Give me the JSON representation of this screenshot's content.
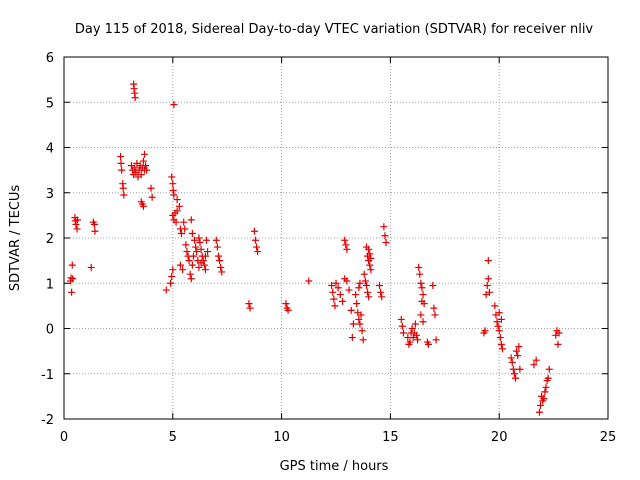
{
  "chart_data": {
    "type": "scatter",
    "title": "Day 115 of 2018, Sidereal Day-to-day VTEC variation (SDTVAR) for receiver nliv",
    "xlabel": "GPS time / hours",
    "ylabel": "SDTVAR / TECUs",
    "xlim": [
      0,
      25
    ],
    "ylim": [
      -2,
      6
    ],
    "xticks": [
      0,
      5,
      10,
      15,
      20,
      25
    ],
    "yticks": [
      -2,
      -1,
      0,
      1,
      2,
      3,
      4,
      5,
      6
    ],
    "xtick_labels": [
      "0",
      "5",
      "10",
      "15",
      "20",
      "25"
    ],
    "ytick_labels": [
      "-2",
      "-1",
      "0",
      "1",
      "2",
      "3",
      "4",
      "5",
      "6"
    ],
    "grid": true,
    "marker": "+",
    "color": "#e00000",
    "series": [
      {
        "name": "SDTVAR",
        "points": [
          [
            0.3,
            1.05
          ],
          [
            0.32,
            1.12
          ],
          [
            0.35,
            0.8
          ],
          [
            0.38,
            1.4
          ],
          [
            0.4,
            1.1
          ],
          [
            0.5,
            2.45
          ],
          [
            0.52,
            2.38
          ],
          [
            0.55,
            2.3
          ],
          [
            0.6,
            2.2
          ],
          [
            0.62,
            2.4
          ],
          [
            1.25,
            1.35
          ],
          [
            1.35,
            2.35
          ],
          [
            1.4,
            2.3
          ],
          [
            1.42,
            2.15
          ],
          [
            2.6,
            3.8
          ],
          [
            2.62,
            3.65
          ],
          [
            2.65,
            3.5
          ],
          [
            2.7,
            3.2
          ],
          [
            2.72,
            3.1
          ],
          [
            2.75,
            2.95
          ],
          [
            3.2,
            5.4
          ],
          [
            3.22,
            5.3
          ],
          [
            3.25,
            5.2
          ],
          [
            3.27,
            5.1
          ],
          [
            3.1,
            3.6
          ],
          [
            3.15,
            3.5
          ],
          [
            3.2,
            3.4
          ],
          [
            3.25,
            3.55
          ],
          [
            3.3,
            3.45
          ],
          [
            3.35,
            3.65
          ],
          [
            3.4,
            3.35
          ],
          [
            3.45,
            3.5
          ],
          [
            3.5,
            3.6
          ],
          [
            3.55,
            3.4
          ],
          [
            3.6,
            3.55
          ],
          [
            3.65,
            3.7
          ],
          [
            3.7,
            3.5
          ],
          [
            3.55,
            2.8
          ],
          [
            3.6,
            2.75
          ],
          [
            3.65,
            2.7
          ],
          [
            3.7,
            3.85
          ],
          [
            3.75,
            3.6
          ],
          [
            3.8,
            3.5
          ],
          [
            4.0,
            3.1
          ],
          [
            4.05,
            2.9
          ],
          [
            4.7,
            0.85
          ],
          [
            4.9,
            1.0
          ],
          [
            4.95,
            1.15
          ],
          [
            5.0,
            1.3
          ],
          [
            4.95,
            3.35
          ],
          [
            5.0,
            3.2
          ],
          [
            5.02,
            3.05
          ],
          [
            5.05,
            2.95
          ],
          [
            5.0,
            2.5
          ],
          [
            5.05,
            2.4
          ],
          [
            5.1,
            2.55
          ],
          [
            5.15,
            2.35
          ],
          [
            5.2,
            2.6
          ],
          [
            5.05,
            4.95
          ],
          [
            5.2,
            2.85
          ],
          [
            5.3,
            2.7
          ],
          [
            5.35,
            2.2
          ],
          [
            5.4,
            2.1
          ],
          [
            5.35,
            1.4
          ],
          [
            5.45,
            1.3
          ],
          [
            5.5,
            2.35
          ],
          [
            5.55,
            2.2
          ],
          [
            5.6,
            1.85
          ],
          [
            5.65,
            1.7
          ],
          [
            5.7,
            1.6
          ],
          [
            5.75,
            1.5
          ],
          [
            5.8,
            1.2
          ],
          [
            5.85,
            1.1
          ],
          [
            5.9,
            1.4
          ],
          [
            5.95,
            1.6
          ],
          [
            5.85,
            2.4
          ],
          [
            5.9,
            2.1
          ],
          [
            6.0,
            1.95
          ],
          [
            6.05,
            1.8
          ],
          [
            6.1,
            1.7
          ],
          [
            6.15,
            1.5
          ],
          [
            6.2,
            1.35
          ],
          [
            6.25,
            1.9
          ],
          [
            6.3,
            1.75
          ],
          [
            6.35,
            1.6
          ],
          [
            6.4,
            1.5
          ],
          [
            6.45,
            1.4
          ],
          [
            6.5,
            1.3
          ],
          [
            6.55,
            1.95
          ],
          [
            6.6,
            1.7
          ],
          [
            6.2,
            2.0
          ],
          [
            6.3,
            1.45
          ],
          [
            6.5,
            1.6
          ],
          [
            7.0,
            1.95
          ],
          [
            7.05,
            1.8
          ],
          [
            7.1,
            1.6
          ],
          [
            7.15,
            1.5
          ],
          [
            7.2,
            1.35
          ],
          [
            7.25,
            1.25
          ],
          [
            8.5,
            0.55
          ],
          [
            8.55,
            0.45
          ],
          [
            8.75,
            2.15
          ],
          [
            8.8,
            1.95
          ],
          [
            8.85,
            1.8
          ],
          [
            8.9,
            1.7
          ],
          [
            10.2,
            0.55
          ],
          [
            10.25,
            0.45
          ],
          [
            10.3,
            0.4
          ],
          [
            11.25,
            1.05
          ],
          [
            12.3,
            0.95
          ],
          [
            12.35,
            0.8
          ],
          [
            12.4,
            0.65
          ],
          [
            12.45,
            0.5
          ],
          [
            12.5,
            1.0
          ],
          [
            12.6,
            0.9
          ],
          [
            12.7,
            0.75
          ],
          [
            12.8,
            0.6
          ],
          [
            12.9,
            1.1
          ],
          [
            13.0,
            1.05
          ],
          [
            12.9,
            1.95
          ],
          [
            12.95,
            1.85
          ],
          [
            13.0,
            1.75
          ],
          [
            13.1,
            0.85
          ],
          [
            13.2,
            0.4
          ],
          [
            13.25,
            -0.2
          ],
          [
            13.3,
            0.1
          ],
          [
            13.4,
            0.75
          ],
          [
            13.45,
            0.55
          ],
          [
            13.5,
            0.35
          ],
          [
            13.55,
            0.2
          ],
          [
            13.6,
            0.1
          ],
          [
            13.65,
            0.3
          ],
          [
            13.7,
            -0.05
          ],
          [
            13.75,
            -0.25
          ],
          [
            13.6,
            1.0
          ],
          [
            13.55,
            0.9
          ],
          [
            13.8,
            1.2
          ],
          [
            13.85,
            1.05
          ],
          [
            13.9,
            0.95
          ],
          [
            13.95,
            0.8
          ],
          [
            14.0,
            0.7
          ],
          [
            13.95,
            1.6
          ],
          [
            14.0,
            1.5
          ],
          [
            14.05,
            1.4
          ],
          [
            14.1,
            1.3
          ],
          [
            13.9,
            1.8
          ],
          [
            14.0,
            1.75
          ],
          [
            14.05,
            1.65
          ],
          [
            14.1,
            1.55
          ],
          [
            14.5,
            0.95
          ],
          [
            14.55,
            0.8
          ],
          [
            14.6,
            0.7
          ],
          [
            14.7,
            2.25
          ],
          [
            14.75,
            2.05
          ],
          [
            14.8,
            1.9
          ],
          [
            15.5,
            0.2
          ],
          [
            15.55,
            0.05
          ],
          [
            15.6,
            -0.1
          ],
          [
            15.8,
            -0.2
          ],
          [
            15.85,
            -0.35
          ],
          [
            15.9,
            -0.3
          ],
          [
            15.95,
            -0.1
          ],
          [
            16.0,
            0.0
          ],
          [
            16.05,
            -0.2
          ],
          [
            16.1,
            -0.1
          ],
          [
            16.15,
            0.1
          ],
          [
            16.2,
            -0.15
          ],
          [
            16.25,
            -0.25
          ],
          [
            16.3,
            1.35
          ],
          [
            16.35,
            1.2
          ],
          [
            16.4,
            1.0
          ],
          [
            16.45,
            0.9
          ],
          [
            16.5,
            0.75
          ],
          [
            16.45,
            0.6
          ],
          [
            16.55,
            0.55
          ],
          [
            16.4,
            0.3
          ],
          [
            16.5,
            0.15
          ],
          [
            16.7,
            -0.3
          ],
          [
            16.75,
            -0.35
          ],
          [
            16.95,
            0.95
          ],
          [
            17.0,
            0.45
          ],
          [
            17.05,
            0.3
          ],
          [
            17.1,
            -0.25
          ],
          [
            19.3,
            -0.1
          ],
          [
            19.35,
            -0.05
          ],
          [
            19.4,
            0.75
          ],
          [
            19.45,
            0.95
          ],
          [
            19.5,
            1.1
          ],
          [
            19.55,
            0.8
          ],
          [
            19.5,
            1.5
          ],
          [
            19.8,
            0.5
          ],
          [
            19.85,
            0.3
          ],
          [
            19.9,
            0.15
          ],
          [
            19.95,
            0.05
          ],
          [
            20.0,
            -0.05
          ],
          [
            20.05,
            -0.2
          ],
          [
            20.1,
            -0.35
          ],
          [
            20.15,
            -0.45
          ],
          [
            20.0,
            0.35
          ],
          [
            20.1,
            0.2
          ],
          [
            20.55,
            -0.65
          ],
          [
            20.6,
            -0.75
          ],
          [
            20.65,
            -0.9
          ],
          [
            20.7,
            -1.0
          ],
          [
            20.75,
            -1.1
          ],
          [
            20.8,
            -0.5
          ],
          [
            20.85,
            -0.6
          ],
          [
            20.9,
            -0.4
          ],
          [
            20.95,
            -0.9
          ],
          [
            21.6,
            -0.8
          ],
          [
            21.7,
            -0.7
          ],
          [
            21.85,
            -1.85
          ],
          [
            21.9,
            -1.7
          ],
          [
            21.95,
            -1.5
          ],
          [
            22.0,
            -1.6
          ],
          [
            22.05,
            -1.55
          ],
          [
            22.1,
            -1.4
          ],
          [
            22.15,
            -1.3
          ],
          [
            22.2,
            -1.15
          ],
          [
            22.25,
            -1.1
          ],
          [
            22.3,
            -0.9
          ],
          [
            22.6,
            -0.15
          ],
          [
            22.65,
            -0.05
          ],
          [
            22.7,
            -0.35
          ],
          [
            22.75,
            -0.1
          ]
        ]
      }
    ]
  }
}
